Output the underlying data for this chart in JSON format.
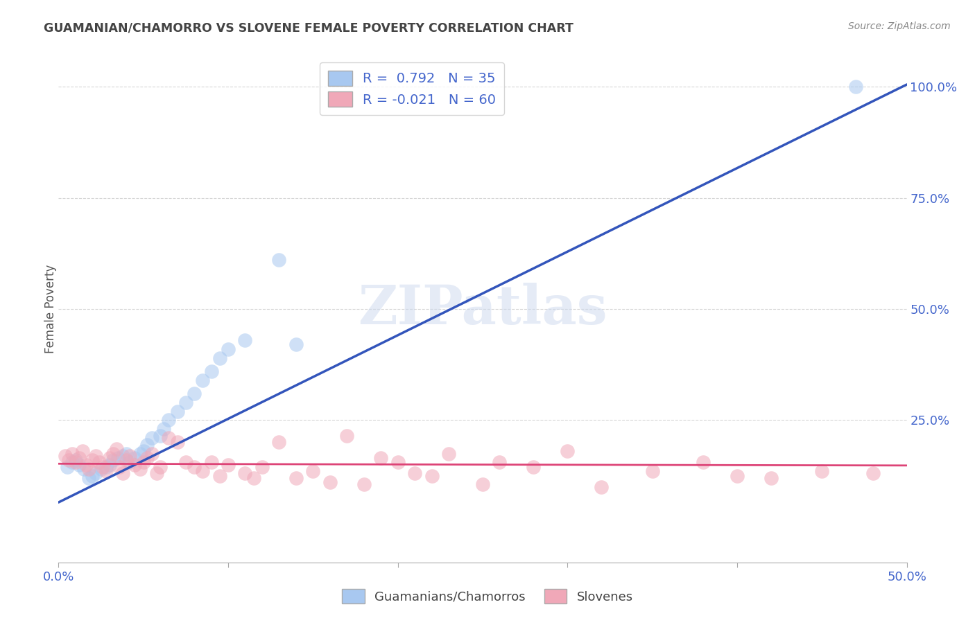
{
  "title": "GUAMANIAN/CHAMORRO VS SLOVENE FEMALE POVERTY CORRELATION CHART",
  "source": "Source: ZipAtlas.com",
  "ylabel": "Female Poverty",
  "yticks_labels": [
    "25.0%",
    "50.0%",
    "75.0%",
    "100.0%"
  ],
  "ytick_vals": [
    0.25,
    0.5,
    0.75,
    1.0
  ],
  "xlim": [
    0.0,
    0.5
  ],
  "ylim": [
    -0.07,
    1.07
  ],
  "blue_color": "#a8c8f0",
  "pink_color": "#f0a8b8",
  "blue_line_color": "#3355bb",
  "pink_line_color": "#dd4477",
  "legend_label_blue": "R =  0.792   N = 35",
  "legend_label_pink": "R = -0.021   N = 60",
  "watermark": "ZIPatlas",
  "blue_scatter_x": [
    0.005,
    0.008,
    0.01,
    0.012,
    0.015,
    0.018,
    0.02,
    0.022,
    0.025,
    0.028,
    0.03,
    0.032,
    0.035,
    0.038,
    0.04,
    0.042,
    0.045,
    0.048,
    0.05,
    0.052,
    0.055,
    0.06,
    0.062,
    0.065,
    0.07,
    0.075,
    0.08,
    0.085,
    0.09,
    0.095,
    0.1,
    0.11,
    0.13,
    0.14,
    0.47
  ],
  "blue_scatter_y": [
    0.145,
    0.155,
    0.16,
    0.15,
    0.14,
    0.12,
    0.125,
    0.13,
    0.14,
    0.145,
    0.15,
    0.16,
    0.165,
    0.17,
    0.175,
    0.155,
    0.165,
    0.175,
    0.18,
    0.195,
    0.21,
    0.215,
    0.23,
    0.25,
    0.27,
    0.29,
    0.31,
    0.34,
    0.36,
    0.39,
    0.41,
    0.43,
    0.61,
    0.42,
    1.0
  ],
  "pink_scatter_x": [
    0.004,
    0.006,
    0.008,
    0.01,
    0.012,
    0.014,
    0.016,
    0.018,
    0.02,
    0.022,
    0.024,
    0.026,
    0.028,
    0.03,
    0.032,
    0.034,
    0.036,
    0.038,
    0.04,
    0.042,
    0.045,
    0.048,
    0.05,
    0.052,
    0.055,
    0.058,
    0.06,
    0.065,
    0.07,
    0.075,
    0.08,
    0.085,
    0.09,
    0.095,
    0.1,
    0.11,
    0.115,
    0.12,
    0.13,
    0.14,
    0.15,
    0.16,
    0.17,
    0.18,
    0.19,
    0.2,
    0.21,
    0.22,
    0.23,
    0.25,
    0.26,
    0.28,
    0.3,
    0.32,
    0.35,
    0.38,
    0.4,
    0.42,
    0.45,
    0.48
  ],
  "pink_scatter_y": [
    0.17,
    0.16,
    0.175,
    0.155,
    0.165,
    0.18,
    0.15,
    0.14,
    0.16,
    0.17,
    0.155,
    0.145,
    0.135,
    0.165,
    0.175,
    0.185,
    0.145,
    0.13,
    0.16,
    0.17,
    0.15,
    0.14,
    0.155,
    0.165,
    0.175,
    0.13,
    0.145,
    0.21,
    0.2,
    0.155,
    0.145,
    0.135,
    0.155,
    0.125,
    0.15,
    0.13,
    0.12,
    0.145,
    0.2,
    0.12,
    0.135,
    0.11,
    0.215,
    0.105,
    0.165,
    0.155,
    0.13,
    0.125,
    0.175,
    0.105,
    0.155,
    0.145,
    0.18,
    0.1,
    0.135,
    0.155,
    0.125,
    0.12,
    0.135,
    0.13
  ],
  "blue_line_x": [
    0.0,
    0.5
  ],
  "blue_line_y": [
    0.065,
    1.005
  ],
  "pink_line_x": [
    0.0,
    0.5
  ],
  "pink_line_y": [
    0.152,
    0.148
  ],
  "xtick_positions": [
    0.0,
    0.1,
    0.2,
    0.3,
    0.4,
    0.5
  ],
  "grid_color": "#cccccc",
  "title_color": "#444444",
  "source_color": "#888888",
  "tick_color": "#4466cc",
  "bottom_legend_labels": [
    "Guamanians/Chamorros",
    "Slovenes"
  ]
}
